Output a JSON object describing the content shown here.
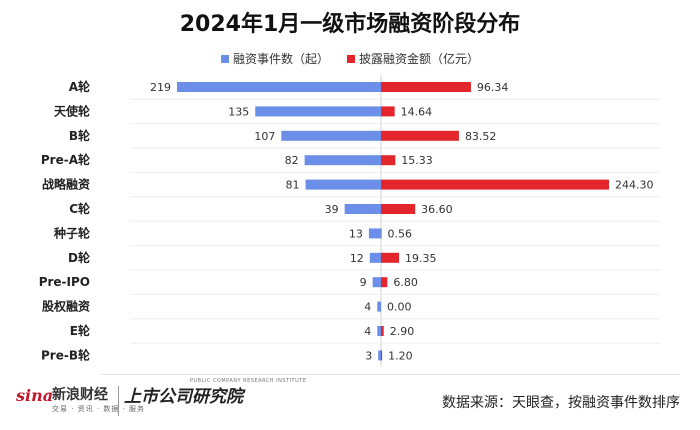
{
  "chart_data": {
    "type": "bar",
    "title": "2024年1月一级市场融资阶段分布",
    "categories": [
      "A轮",
      "天使轮",
      "B轮",
      "Pre-A轮",
      "战略融资",
      "C轮",
      "种子轮",
      "D轮",
      "Pre-IPO",
      "股权融资",
      "E轮",
      "Pre-B轮"
    ],
    "series": [
      {
        "name": "融资事件数（起）",
        "values": [
          219,
          135,
          107,
          82,
          81,
          39,
          13,
          12,
          9,
          4,
          4,
          3
        ],
        "direction": "left"
      },
      {
        "name": "披露融资金额（亿元）",
        "values": [
          "96.34",
          "14.64",
          "83.52",
          "15.33",
          "244.30",
          "36.60",
          "0.56",
          "19.35",
          "6.80",
          "0.00",
          "2.90",
          "1.20"
        ],
        "direction": "right"
      }
    ],
    "legend_position": "top-center",
    "grid": false
  },
  "colors": {
    "count": "#6b8fe8",
    "amount": "#e3262b"
  },
  "footer": {
    "logo_sina": "sina",
    "logo_sina_cn": "新浪财经",
    "logo_sina_sub": "交易 · 资讯 · 数据 · 服务",
    "logo_institute": "上市公司研究院",
    "logo_institute_en": "PUBLIC COMPANY RESEARCH INSTITUTE",
    "source": "数据来源：天眼查，按融资事件数排序"
  }
}
